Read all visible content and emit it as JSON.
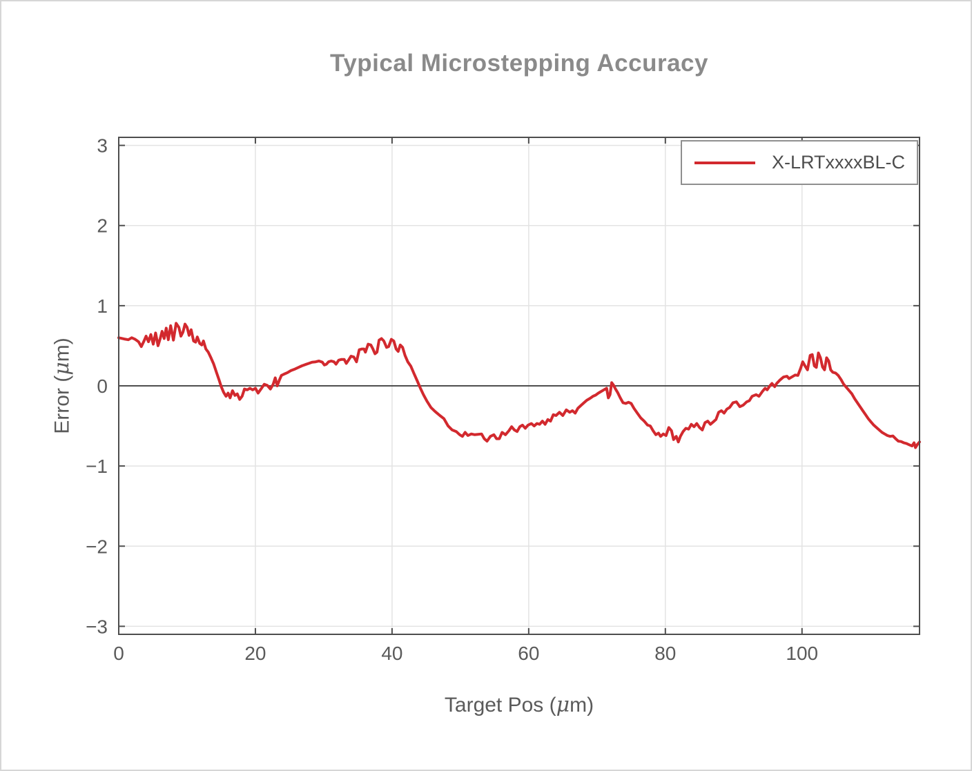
{
  "title": "Typical Microstepping Accuracy",
  "legend": {
    "label": "X-LRTxxxxBL-C",
    "position": "top-right"
  },
  "axes": {
    "xlabel": "Target Pos (μm)",
    "ylabel": "Error (μm)"
  },
  "colors": {
    "series_red": "#d2292e",
    "title_gray": "#8a8a8a",
    "axis_text_gray": "#5a5a5a",
    "axis_line_gray": "#4d4d4d",
    "grid_gray": "#e3e3e3",
    "legend_border_gray": "#8f8f8f",
    "legend_text_gray": "#4d4d4d",
    "background": "#ffffff"
  },
  "chart_data": {
    "type": "line",
    "title": "Typical Microstepping Accuracy",
    "xlabel": "Target Pos (μm)",
    "ylabel": "Error (μm)",
    "xlim": [
      0,
      117.2
    ],
    "ylim": [
      -3.1,
      3.1
    ],
    "xticks": [
      0,
      20,
      40,
      60,
      80,
      100
    ],
    "yticks": [
      -3,
      -2,
      -1,
      0,
      1,
      2,
      3
    ],
    "grid": true,
    "zero_line": true,
    "legend_position": "top-right",
    "series": [
      {
        "name": "X-LRTxxxxBL-C",
        "color": "#d2292e",
        "points": [
          [
            0,
            0.6
          ],
          [
            0.8,
            0.585
          ],
          [
            1.4,
            0.575
          ],
          [
            1.9,
            0.6
          ],
          [
            2.4,
            0.58
          ],
          [
            2.9,
            0.55
          ],
          [
            3.3,
            0.49
          ],
          [
            3.7,
            0.56
          ],
          [
            4,
            0.62
          ],
          [
            4.35,
            0.55
          ],
          [
            4.7,
            0.64
          ],
          [
            5.05,
            0.52
          ],
          [
            5.4,
            0.66
          ],
          [
            5.75,
            0.5
          ],
          [
            6.05,
            0.585
          ],
          [
            6.35,
            0.68
          ],
          [
            6.65,
            0.59
          ],
          [
            6.95,
            0.72
          ],
          [
            7.25,
            0.575
          ],
          [
            7.6,
            0.75
          ],
          [
            8,
            0.57
          ],
          [
            8.4,
            0.78
          ],
          [
            8.8,
            0.73
          ],
          [
            9.1,
            0.62
          ],
          [
            9.4,
            0.67
          ],
          [
            9.7,
            0.77
          ],
          [
            10,
            0.73
          ],
          [
            10.3,
            0.63
          ],
          [
            10.6,
            0.7
          ],
          [
            10.95,
            0.56
          ],
          [
            11.25,
            0.545
          ],
          [
            11.5,
            0.61
          ],
          [
            11.85,
            0.53
          ],
          [
            12.15,
            0.51
          ],
          [
            12.4,
            0.56
          ],
          [
            12.75,
            0.46
          ],
          [
            13.1,
            0.42
          ],
          [
            13.5,
            0.35
          ],
          [
            13.9,
            0.27
          ],
          [
            14.3,
            0.17
          ],
          [
            14.7,
            0.07
          ],
          [
            15,
            -0.01
          ],
          [
            15.35,
            -0.08
          ],
          [
            15.7,
            -0.13
          ],
          [
            16,
            -0.09
          ],
          [
            16.3,
            -0.15
          ],
          [
            16.65,
            -0.06
          ],
          [
            17,
            -0.12
          ],
          [
            17.35,
            -0.1
          ],
          [
            17.7,
            -0.17
          ],
          [
            18.05,
            -0.13
          ],
          [
            18.4,
            -0.04
          ],
          [
            18.8,
            -0.05
          ],
          [
            19.2,
            -0.03
          ],
          [
            19.6,
            -0.05
          ],
          [
            20,
            -0.03
          ],
          [
            20.4,
            -0.09
          ],
          [
            20.85,
            -0.035
          ],
          [
            21.3,
            0.02
          ],
          [
            21.75,
            0.005
          ],
          [
            22.2,
            -0.04
          ],
          [
            22.6,
            0.02
          ],
          [
            22.9,
            0.1
          ],
          [
            23.2,
            0
          ],
          [
            23.5,
            0.07
          ],
          [
            23.8,
            0.13
          ],
          [
            24.2,
            0.146
          ],
          [
            24.7,
            0.165
          ],
          [
            25.2,
            0.19
          ],
          [
            25.8,
            0.21
          ],
          [
            26.3,
            0.23
          ],
          [
            26.8,
            0.25
          ],
          [
            27.3,
            0.265
          ],
          [
            27.8,
            0.28
          ],
          [
            28.3,
            0.295
          ],
          [
            28.8,
            0.3
          ],
          [
            29.3,
            0.31
          ],
          [
            29.8,
            0.295
          ],
          [
            30.1,
            0.26
          ],
          [
            30.4,
            0.27
          ],
          [
            30.7,
            0.3
          ],
          [
            31.1,
            0.31
          ],
          [
            31.5,
            0.3
          ],
          [
            31.8,
            0.27
          ],
          [
            32.2,
            0.32
          ],
          [
            32.6,
            0.33
          ],
          [
            33,
            0.33
          ],
          [
            33.3,
            0.28
          ],
          [
            33.7,
            0.33
          ],
          [
            34,
            0.37
          ],
          [
            34.4,
            0.36
          ],
          [
            34.8,
            0.3
          ],
          [
            35.2,
            0.45
          ],
          [
            35.6,
            0.46
          ],
          [
            35.9,
            0.46
          ],
          [
            36.1,
            0.42
          ],
          [
            36.5,
            0.52
          ],
          [
            36.9,
            0.51
          ],
          [
            37.2,
            0.46
          ],
          [
            37.5,
            0.4
          ],
          [
            37.8,
            0.42
          ],
          [
            38.1,
            0.57
          ],
          [
            38.45,
            0.59
          ],
          [
            38.8,
            0.56
          ],
          [
            39.2,
            0.48
          ],
          [
            39.5,
            0.49
          ],
          [
            39.9,
            0.58
          ],
          [
            40.25,
            0.56
          ],
          [
            40.6,
            0.46
          ],
          [
            40.9,
            0.43
          ],
          [
            41.2,
            0.51
          ],
          [
            41.55,
            0.48
          ],
          [
            41.9,
            0.38
          ],
          [
            42.3,
            0.3
          ],
          [
            42.75,
            0.245
          ],
          [
            43.2,
            0.155
          ],
          [
            43.7,
            0.06
          ],
          [
            44.15,
            -0.03
          ],
          [
            44.6,
            -0.11
          ],
          [
            45.1,
            -0.19
          ],
          [
            45.7,
            -0.27
          ],
          [
            46.3,
            -0.32
          ],
          [
            47,
            -0.37
          ],
          [
            47.6,
            -0.41
          ],
          [
            48.2,
            -0.5
          ],
          [
            48.8,
            -0.55
          ],
          [
            49.4,
            -0.57
          ],
          [
            49.9,
            -0.61
          ],
          [
            50.3,
            -0.63
          ],
          [
            50.7,
            -0.58
          ],
          [
            51.1,
            -0.62
          ],
          [
            51.6,
            -0.6
          ],
          [
            52.1,
            -0.61
          ],
          [
            52.6,
            -0.605
          ],
          [
            53.1,
            -0.6
          ],
          [
            53.5,
            -0.66
          ],
          [
            53.9,
            -0.69
          ],
          [
            54.4,
            -0.63
          ],
          [
            54.9,
            -0.61
          ],
          [
            55.3,
            -0.66
          ],
          [
            55.7,
            -0.66
          ],
          [
            56.1,
            -0.58
          ],
          [
            56.6,
            -0.61
          ],
          [
            57.1,
            -0.56
          ],
          [
            57.5,
            -0.51
          ],
          [
            57.9,
            -0.55
          ],
          [
            58.3,
            -0.57
          ],
          [
            58.7,
            -0.51
          ],
          [
            59.1,
            -0.49
          ],
          [
            59.5,
            -0.53
          ],
          [
            59.9,
            -0.49
          ],
          [
            60.4,
            -0.47
          ],
          [
            60.8,
            -0.5
          ],
          [
            61.2,
            -0.47
          ],
          [
            61.6,
            -0.48
          ],
          [
            62,
            -0.44
          ],
          [
            62.4,
            -0.48
          ],
          [
            62.8,
            -0.42
          ],
          [
            63.2,
            -0.44
          ],
          [
            63.6,
            -0.36
          ],
          [
            64,
            -0.37
          ],
          [
            64.5,
            -0.33
          ],
          [
            65,
            -0.37
          ],
          [
            65.5,
            -0.3
          ],
          [
            66,
            -0.33
          ],
          [
            66.4,
            -0.31
          ],
          [
            66.8,
            -0.34
          ],
          [
            67.2,
            -0.28
          ],
          [
            67.7,
            -0.24
          ],
          [
            68.1,
            -0.21
          ],
          [
            68.5,
            -0.18
          ],
          [
            69,
            -0.155
          ],
          [
            69.4,
            -0.13
          ],
          [
            69.8,
            -0.115
          ],
          [
            70.2,
            -0.09
          ],
          [
            70.6,
            -0.07
          ],
          [
            71,
            -0.05
          ],
          [
            71.4,
            -0.03
          ],
          [
            71.65,
            -0.15
          ],
          [
            71.9,
            -0.11
          ],
          [
            72.15,
            0.04
          ],
          [
            72.4,
            0.01
          ],
          [
            72.7,
            -0.04
          ],
          [
            73,
            -0.08
          ],
          [
            73.4,
            -0.15
          ],
          [
            73.8,
            -0.21
          ],
          [
            74.2,
            -0.22
          ],
          [
            74.6,
            -0.205
          ],
          [
            75,
            -0.22
          ],
          [
            75.4,
            -0.28
          ],
          [
            75.9,
            -0.34
          ],
          [
            76.4,
            -0.4
          ],
          [
            76.9,
            -0.44
          ],
          [
            77.4,
            -0.49
          ],
          [
            77.8,
            -0.5
          ],
          [
            78.2,
            -0.56
          ],
          [
            78.6,
            -0.61
          ],
          [
            79,
            -0.59
          ],
          [
            79.3,
            -0.63
          ],
          [
            79.7,
            -0.6
          ],
          [
            80.1,
            -0.62
          ],
          [
            80.5,
            -0.52
          ],
          [
            80.9,
            -0.56
          ],
          [
            81.2,
            -0.67
          ],
          [
            81.6,
            -0.63
          ],
          [
            81.9,
            -0.7
          ],
          [
            82.2,
            -0.63
          ],
          [
            82.6,
            -0.57
          ],
          [
            83,
            -0.53
          ],
          [
            83.4,
            -0.54
          ],
          [
            83.8,
            -0.48
          ],
          [
            84.2,
            -0.51
          ],
          [
            84.6,
            -0.47
          ],
          [
            85,
            -0.52
          ],
          [
            85.4,
            -0.55
          ],
          [
            85.8,
            -0.46
          ],
          [
            86.2,
            -0.44
          ],
          [
            86.6,
            -0.48
          ],
          [
            87,
            -0.45
          ],
          [
            87.4,
            -0.42
          ],
          [
            87.8,
            -0.33
          ],
          [
            88.2,
            -0.31
          ],
          [
            88.6,
            -0.34
          ],
          [
            89,
            -0.29
          ],
          [
            89.4,
            -0.27
          ],
          [
            89.9,
            -0.21
          ],
          [
            90.4,
            -0.2
          ],
          [
            90.9,
            -0.26
          ],
          [
            91.4,
            -0.24
          ],
          [
            91.9,
            -0.2
          ],
          [
            92.3,
            -0.185
          ],
          [
            92.7,
            -0.13
          ],
          [
            93.3,
            -0.11
          ],
          [
            93.7,
            -0.13
          ],
          [
            94.2,
            -0.07
          ],
          [
            94.6,
            -0.03
          ],
          [
            94.9,
            -0.05
          ],
          [
            95.3,
            0
          ],
          [
            95.6,
            0.03
          ],
          [
            96,
            -0.01
          ],
          [
            96.3,
            0.03
          ],
          [
            96.8,
            0.075
          ],
          [
            97.3,
            0.11
          ],
          [
            97.8,
            0.12
          ],
          [
            98.1,
            0.09
          ],
          [
            98.5,
            0.11
          ],
          [
            99,
            0.135
          ],
          [
            99.4,
            0.13
          ],
          [
            99.8,
            0.22
          ],
          [
            100.1,
            0.3
          ],
          [
            100.5,
            0.24
          ],
          [
            100.8,
            0.2
          ],
          [
            101.2,
            0.38
          ],
          [
            101.5,
            0.39
          ],
          [
            101.8,
            0.25
          ],
          [
            102.1,
            0.23
          ],
          [
            102.4,
            0.41
          ],
          [
            102.7,
            0.35
          ],
          [
            103,
            0.235
          ],
          [
            103.3,
            0.2
          ],
          [
            103.6,
            0.35
          ],
          [
            103.9,
            0.31
          ],
          [
            104.2,
            0.2
          ],
          [
            104.5,
            0.17
          ],
          [
            104.9,
            0.16
          ],
          [
            105.3,
            0.13
          ],
          [
            105.7,
            0.08
          ],
          [
            106.1,
            0.02
          ],
          [
            106.5,
            -0.02
          ],
          [
            106.9,
            -0.06
          ],
          [
            107.3,
            -0.1
          ],
          [
            107.7,
            -0.16
          ],
          [
            108.1,
            -0.21
          ],
          [
            108.5,
            -0.26
          ],
          [
            108.9,
            -0.31
          ],
          [
            109.3,
            -0.36
          ],
          [
            109.7,
            -0.41
          ],
          [
            110.1,
            -0.45
          ],
          [
            110.5,
            -0.49
          ],
          [
            110.9,
            -0.52
          ],
          [
            111.3,
            -0.55
          ],
          [
            111.7,
            -0.58
          ],
          [
            112.1,
            -0.6
          ],
          [
            112.5,
            -0.62
          ],
          [
            112.9,
            -0.63
          ],
          [
            113.3,
            -0.625
          ],
          [
            113.7,
            -0.66
          ],
          [
            114.1,
            -0.69
          ],
          [
            114.5,
            -0.695
          ],
          [
            114.9,
            -0.71
          ],
          [
            115.3,
            -0.72
          ],
          [
            115.7,
            -0.735
          ],
          [
            116.1,
            -0.75
          ],
          [
            116.4,
            -0.71
          ],
          [
            116.6,
            -0.77
          ],
          [
            116.9,
            -0.73
          ],
          [
            117.2,
            -0.7
          ]
        ]
      }
    ]
  }
}
